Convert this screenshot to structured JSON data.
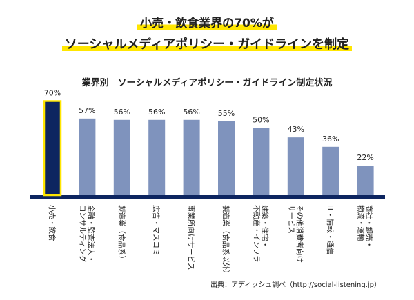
{
  "headline": {
    "line1": "小売・飲食業界の70%が",
    "line2": "ソーシャルメディアポリシー・ガイドラインを制定"
  },
  "colors": {
    "highlight": "#ffe600",
    "bar_default": "#7f93bd",
    "bar_emphasis": "#0d2560",
    "bar_emphasis_outline": "#ffe600",
    "baseline": "#0d2560"
  },
  "chart_data": {
    "type": "bar",
    "title": "業界別　ソーシャルメディアポリシー・ガイドライン制定状況",
    "xlabel": "",
    "ylabel": "",
    "ylim": [
      0,
      75
    ],
    "grid": false,
    "legend": "none",
    "categories": [
      "小売・飲食",
      "金融・監査法人・コンサルティング",
      "製造業（食品系）",
      "広告・マスコミ",
      "事業所向けサービス",
      "製造業（食品系以外）",
      "建築・住宅・不動産・インフラ",
      "その他消費者向けサービス",
      "IT・情報・通信",
      "商社・卸売・物流・運輸"
    ],
    "category_lines": [
      [
        "小売・飲食"
      ],
      [
        "金融・監査法人・",
        "コンサルティング"
      ],
      [
        "製造業（食品系）"
      ],
      [
        "広告・マスコミ"
      ],
      [
        "事業所向けサービス"
      ],
      [
        "製造業（食品系以外）"
      ],
      [
        "建築・住宅・",
        "不動産・インフラ"
      ],
      [
        "その他消費者向け",
        "サービス"
      ],
      [
        "IT・情報・通信"
      ],
      [
        "商社・卸売・",
        "物流・運輸"
      ]
    ],
    "values": [
      70,
      57,
      56,
      56,
      56,
      55,
      50,
      43,
      36,
      22
    ],
    "value_labels": [
      "70%",
      "57%",
      "56%",
      "56%",
      "56%",
      "55%",
      "50%",
      "43%",
      "36%",
      "22%"
    ],
    "highlight_index": 0
  },
  "source": "出典：アディッシュ調べ（http://social-listening.jp）"
}
